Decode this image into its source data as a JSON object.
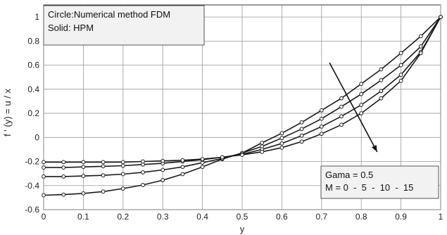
{
  "chart_data": {
    "type": "line",
    "xlabel": "y",
    "ylabel": "f ' (y) = u / x",
    "xlim": [
      0,
      1
    ],
    "ylim": [
      -0.6,
      1.1
    ],
    "xticks": [
      "0",
      "0.1",
      "0.2",
      "0.3",
      "0.4",
      "0.5",
      "0.6",
      "0.7",
      "0.8",
      "0.9",
      "1"
    ],
    "yticks": [
      "-0.6",
      "-0.4",
      "-0.2",
      "0",
      "0.2",
      "0.4",
      "0.6",
      "0.8",
      "1"
    ],
    "grid": true,
    "method_note": [
      "Circle:Numerical method FDM",
      "Solid: HPM"
    ],
    "param_note": [
      "Gama = 0.5",
      "M = 0  -  5  -  10  -  15"
    ],
    "x": [
      0,
      0.05,
      0.1,
      0.15,
      0.2,
      0.25,
      0.3,
      0.35,
      0.4,
      0.45,
      0.5,
      0.55,
      0.6,
      0.65,
      0.7,
      0.75,
      0.8,
      0.85,
      0.9,
      0.95,
      1.0
    ],
    "series": [
      {
        "values": [
          -0.48,
          -0.475,
          -0.465,
          -0.45,
          -0.425,
          -0.395,
          -0.355,
          -0.305,
          -0.245,
          -0.18,
          -0.13,
          -0.045,
          0.035,
          0.125,
          0.225,
          0.325,
          0.445,
          0.565,
          0.7,
          0.84,
          1.0
        ]
      },
      {
        "values": [
          -0.325,
          -0.325,
          -0.32,
          -0.315,
          -0.305,
          -0.29,
          -0.27,
          -0.245,
          -0.21,
          -0.175,
          -0.13,
          -0.075,
          -0.005,
          0.07,
          0.155,
          0.255,
          0.36,
          0.475,
          0.6,
          0.755,
          1.0
        ]
      },
      {
        "values": [
          -0.25,
          -0.25,
          -0.245,
          -0.24,
          -0.235,
          -0.225,
          -0.215,
          -0.2,
          -0.185,
          -0.165,
          -0.14,
          -0.1,
          -0.05,
          0.015,
          0.09,
          0.175,
          0.27,
          0.385,
          0.52,
          0.71,
          1.0
        ]
      },
      {
        "values": [
          -0.205,
          -0.205,
          -0.205,
          -0.205,
          -0.205,
          -0.2,
          -0.195,
          -0.19,
          -0.18,
          -0.165,
          -0.145,
          -0.12,
          -0.085,
          -0.035,
          0.03,
          0.105,
          0.2,
          0.325,
          0.47,
          0.7,
          1.0
        ]
      }
    ],
    "arrow": {
      "from": [
        0.72,
        0.62
      ],
      "to": [
        0.84,
        -0.12
      ]
    }
  }
}
